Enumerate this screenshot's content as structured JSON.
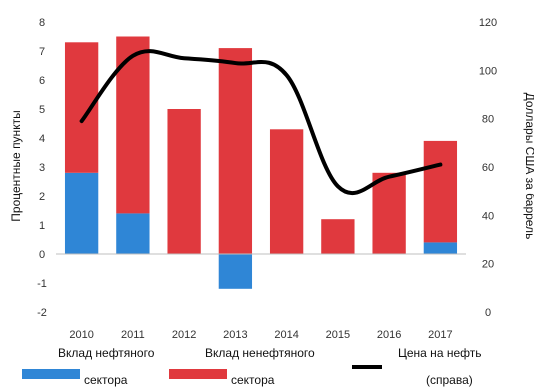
{
  "chart_data": {
    "type": "bar",
    "categories": [
      "2010",
      "2011",
      "2012",
      "2013",
      "2014",
      "2015",
      "2016",
      "2017"
    ],
    "series": [
      {
        "name": "Вклад нефтяного сектора",
        "kind": "bar",
        "axis": "left",
        "color": "#2f86d6",
        "values": [
          2.8,
          1.4,
          0,
          -1.2,
          0,
          0,
          0,
          0.4
        ]
      },
      {
        "name": "Вклад ненефтяного сектора",
        "kind": "bar",
        "axis": "left",
        "color": "#e0393e",
        "values": [
          4.5,
          6.1,
          5.0,
          7.1,
          4.3,
          1.2,
          2.8,
          3.5
        ]
      },
      {
        "name": "Цена на нефть (справа)",
        "kind": "line",
        "axis": "right",
        "color": "#000000",
        "values": [
          79,
          106,
          105,
          103,
          98,
          52,
          56,
          61
        ]
      }
    ],
    "y_left": {
      "label": "Процентные пункты",
      "ylim": [
        -2,
        8
      ],
      "ticks": [
        "-2",
        "-1",
        "0",
        "1",
        "2",
        "3",
        "4",
        "5",
        "6",
        "7",
        "8"
      ]
    },
    "y_right": {
      "label": "Доллары США за баррель",
      "ylim": [
        0,
        120
      ],
      "ticks": [
        "0",
        "20",
        "40",
        "60",
        "80",
        "100",
        "120"
      ]
    },
    "legend": {
      "placement": "bottom",
      "items": [
        {
          "line1": "Вклад нефтяного",
          "line2": "сектора",
          "color": "#2f86d6",
          "swatch": "bar"
        },
        {
          "line1": "Вклад ненефтяного",
          "line2": "сектора",
          "color": "#e0393e",
          "swatch": "bar"
        },
        {
          "line1": "Цена на нефть",
          "line2": "(справа)",
          "color": "#000000",
          "swatch": "line"
        }
      ]
    },
    "grid": false
  }
}
